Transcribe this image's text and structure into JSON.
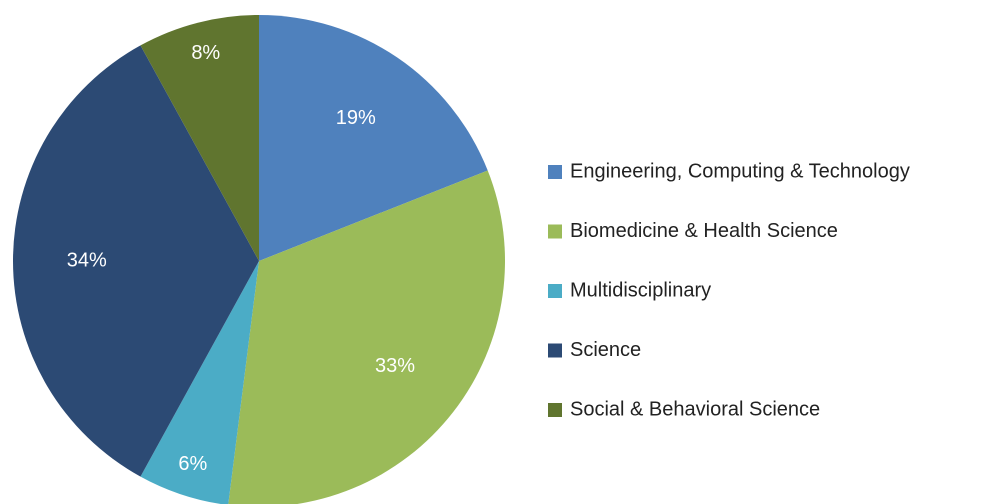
{
  "chart_data": {
    "type": "pie",
    "categories": [
      "Engineering, Computing & Technology",
      "Biomedicine & Health Science",
      "Multidisciplinary",
      "Science",
      "Social & Behavioral Science"
    ],
    "values": [
      19,
      33,
      6,
      34,
      8
    ],
    "value_labels": [
      "19%",
      "33%",
      "6%",
      "34%",
      "8%"
    ],
    "colors": [
      "#4f81bd",
      "#9bbb59",
      "#4bacc6",
      "#2c4a74",
      "#60752f"
    ],
    "legend": "right"
  }
}
